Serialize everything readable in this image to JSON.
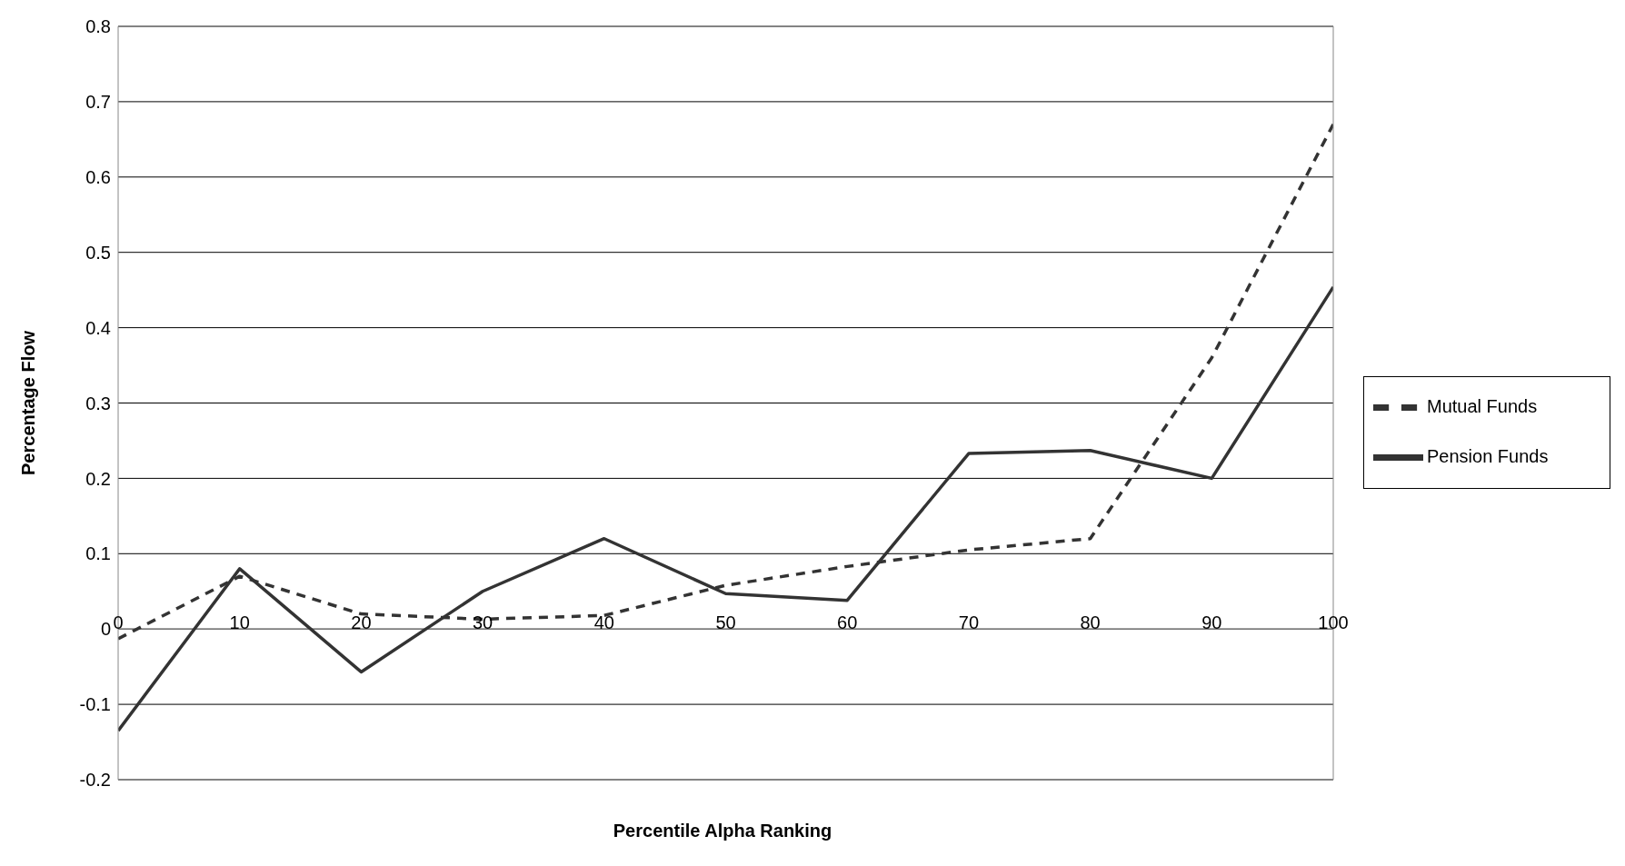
{
  "chart_data": {
    "type": "line",
    "xlabel": "Percentile Alpha Ranking",
    "ylabel": "Percentage Flow",
    "x": [
      0,
      10,
      20,
      30,
      40,
      50,
      60,
      70,
      80,
      90,
      100
    ],
    "series": [
      {
        "name": "Mutual Funds",
        "color": "#333333",
        "line_style": "dashed",
        "values": [
          -0.013,
          0.07,
          0.02,
          0.013,
          0.018,
          0.058,
          0.083,
          0.105,
          0.12,
          0.36,
          0.67
        ]
      },
      {
        "name": "Pension Funds",
        "color": "#333333",
        "line_style": "solid",
        "values": [
          -0.135,
          0.08,
          -0.057,
          0.05,
          0.12,
          0.047,
          0.038,
          0.233,
          0.237,
          0.2,
          0.454
        ]
      }
    ],
    "xlim": [
      0,
      100
    ],
    "xticks": [
      0,
      10,
      20,
      30,
      40,
      50,
      60,
      70,
      80,
      90,
      100
    ],
    "ylim": [
      -0.2,
      0.8
    ],
    "yticks": [
      -0.2,
      -0.1,
      0,
      0.1,
      0.2,
      0.3,
      0.4,
      0.5,
      0.6,
      0.7,
      0.8
    ],
    "grid": "y",
    "legend": "right",
    "marker": "none"
  }
}
